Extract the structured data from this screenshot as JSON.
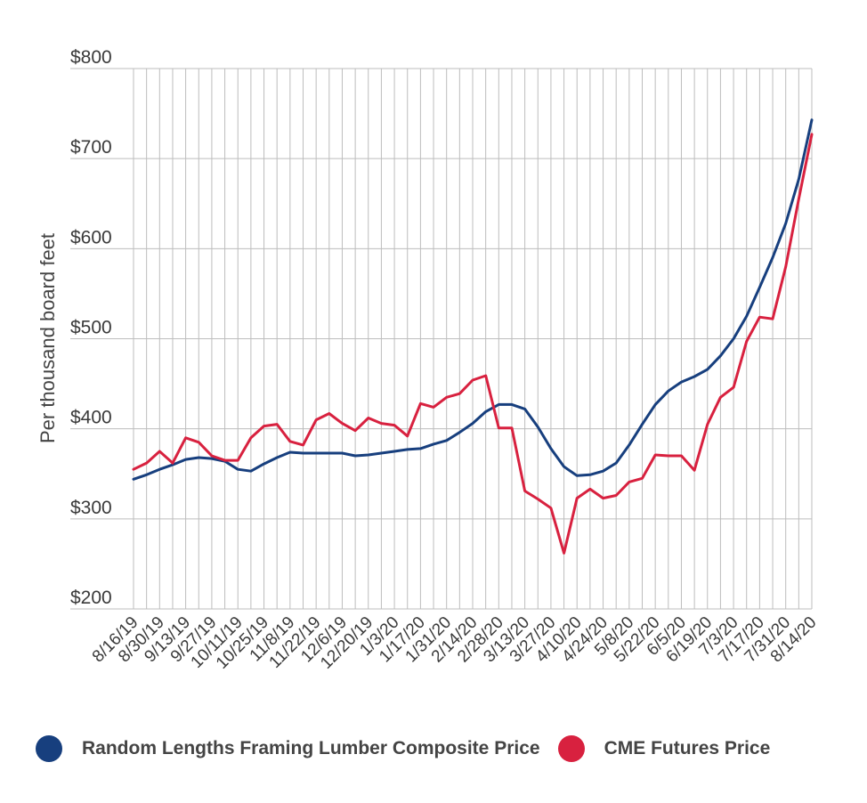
{
  "chart_data": {
    "type": "line",
    "title": "",
    "xlabel": "",
    "ylabel": "Per thousand board feet",
    "ylim": [
      200,
      800
    ],
    "yticks": [
      "$800",
      "$700",
      "$600",
      "$500",
      "$400",
      "$300",
      "$200"
    ],
    "ytick_values": [
      800,
      700,
      600,
      500,
      400,
      300,
      200
    ],
    "grid": true,
    "legend_position": "bottom",
    "x_labels": [
      "8/16/19",
      "8/30/19",
      "9/13/19",
      "9/27/19",
      "10/11/19",
      "10/25/19",
      "11/8/19",
      "11/22/19",
      "12/6/19",
      "12/20/19",
      "1/3/20",
      "1/17/20",
      "1/31/20",
      "2/14/20",
      "2/28/20",
      "3/13/20",
      "3/27/20",
      "4/10/20",
      "4/24/20",
      "5/8/20",
      "5/22/20",
      "6/5/20",
      "6/19/20",
      "7/3/20",
      "7/17/20",
      "7/31/20",
      "8/14/20"
    ],
    "series": [
      {
        "name": "Random Lengths Framing Lumber Composite Price",
        "color": "#173f7e",
        "values": [
          344,
          349,
          355,
          360,
          366,
          368,
          367,
          364,
          355,
          353,
          361,
          368,
          374,
          373,
          373,
          373,
          373,
          370,
          371,
          373,
          375,
          377,
          378,
          383,
          387,
          396,
          406,
          419,
          427,
          427,
          422,
          402,
          378,
          358,
          348,
          349,
          353,
          362,
          382,
          405,
          427,
          442,
          452,
          458,
          466,
          481,
          500,
          525,
          557,
          590,
          628,
          677,
          743
        ]
      },
      {
        "name": "CME Futures Price",
        "color": "#d8213f",
        "values": [
          355,
          362,
          375,
          362,
          390,
          385,
          370,
          365,
          365,
          390,
          403,
          405,
          386,
          382,
          410,
          417,
          406,
          398,
          412,
          406,
          404,
          392,
          428,
          424,
          435,
          439,
          454,
          459,
          401,
          401,
          331,
          322,
          312,
          262,
          323,
          333,
          323,
          326,
          341,
          345,
          371,
          370,
          370,
          354,
          405,
          435,
          446,
          497,
          524,
          522,
          580,
          655,
          727
        ]
      }
    ]
  }
}
